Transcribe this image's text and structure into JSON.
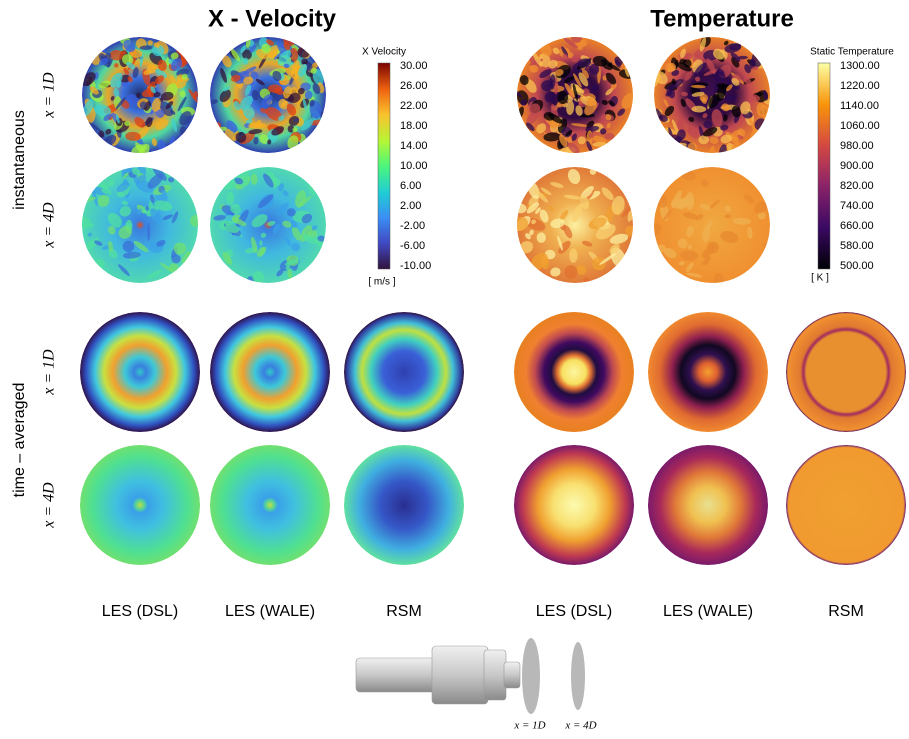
{
  "titles": [
    "X - Velocity",
    "Temperature"
  ],
  "velocity_colorbar": {
    "title": "X Velocity",
    "ticks": [
      "30.00",
      "26.00",
      "22.00",
      "18.00",
      "14.00",
      "10.00",
      "6.00",
      "2.00",
      "-2.00",
      "-6.00",
      "-10.00"
    ],
    "unit": "[ m/s ]"
  },
  "temperature_colorbar": {
    "title": "Static Temperature",
    "ticks": [
      "1300.00",
      "1220.00",
      "1140.00",
      "1060.00",
      "980.00",
      "900.00",
      "820.00",
      "740.00",
      "660.00",
      "580.00",
      "500.00"
    ],
    "unit": "[ K ]"
  },
  "row_groups": [
    {
      "label": "instantaneous",
      "rows": [
        "x = 1D",
        "x = 4D"
      ]
    },
    {
      "label": "time – averaged",
      "rows": [
        "x = 1D",
        "x = 4D"
      ]
    }
  ],
  "velocity_columns": [
    "LES (DSL)",
    "LES (WALE)",
    "RSM"
  ],
  "temperature_columns": [
    "LES (DSL)",
    "LES (WALE)",
    "RSM"
  ],
  "diagram": {
    "planes": [
      "x = 1D",
      "x = 4D"
    ]
  }
}
